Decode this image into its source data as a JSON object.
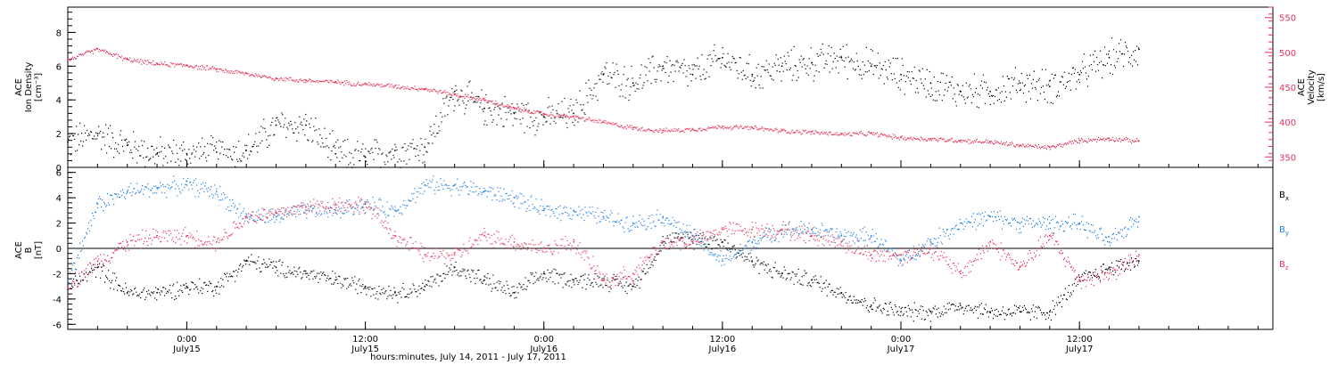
{
  "figure": {
    "xaxis_title": "hours:minutes, July 14, 2011 - July 17, 2011",
    "xticks": [
      {
        "time": "0:00",
        "day": "July15",
        "hour": 24
      },
      {
        "time": "12:00",
        "day": "July15",
        "hour": 36
      },
      {
        "time": "0:00",
        "day": "July16",
        "hour": 48
      },
      {
        "time": "12:00",
        "day": "July16",
        "hour": 60
      },
      {
        "time": "0:00",
        "day": "July17",
        "hour": 72
      },
      {
        "time": "12:00",
        "day": "July17",
        "hour": 84
      }
    ],
    "xrange_hours": [
      16,
      97
    ]
  },
  "colors": {
    "black": "#000000",
    "pink": "#e8325a",
    "blue": "#1e7fe0",
    "gray": "#555555"
  },
  "chart_data": [
    {
      "type": "scatter",
      "ylabel_lines": [
        "ACE",
        "Ion Density",
        "[cm⁻³]"
      ],
      "y2label_lines": [
        "ACE",
        "Velocity",
        "[km/s]"
      ],
      "ylim": [
        0,
        9.5
      ],
      "y2lim": [
        335,
        565
      ],
      "yticks": [
        0,
        2,
        4,
        6,
        8
      ],
      "y2ticks": [
        350,
        400,
        450,
        500,
        550
      ],
      "x_hours": [
        16,
        18,
        20,
        22,
        24,
        26,
        28,
        30,
        32,
        34,
        36,
        38,
        40,
        42,
        44,
        46,
        48,
        50,
        52,
        54,
        56,
        58,
        60,
        62,
        64,
        66,
        68,
        70,
        72,
        74,
        76,
        78,
        80,
        82,
        84,
        86,
        88
      ],
      "series": [
        {
          "role": "density",
          "color": "#000000",
          "values": [
            1.5,
            2.0,
            1.3,
            0.8,
            0.8,
            0.9,
            1.0,
            2.5,
            2.5,
            0.8,
            0.6,
            1.0,
            1.2,
            4.5,
            3.5,
            3.2,
            3.0,
            3.2,
            5.5,
            5.0,
            6.0,
            5.5,
            6.5,
            5.5,
            6.0,
            6.2,
            6.5,
            6.0,
            5.5,
            5.0,
            4.5,
            4.5,
            5.0,
            4.8,
            5.5,
            6.5,
            7.0
          ]
        },
        {
          "role": "velocity",
          "color": "#e8325a",
          "axis": "right",
          "values": [
            490,
            505,
            490,
            484,
            482,
            476,
            470,
            463,
            460,
            458,
            455,
            452,
            448,
            440,
            432,
            420,
            412,
            408,
            400,
            392,
            388,
            390,
            394,
            392,
            388,
            386,
            383,
            384,
            378,
            376,
            374,
            372,
            367,
            364,
            374,
            377,
            373
          ]
        }
      ]
    },
    {
      "type": "scatter",
      "ylabel_lines": [
        "ACE",
        "B",
        "[nT]"
      ],
      "ylim": [
        -6.4,
        6.4
      ],
      "yticks": [
        -6,
        -4,
        -2,
        0,
        2,
        4,
        6
      ],
      "x_hours": [
        16,
        18,
        20,
        22,
        24,
        26,
        28,
        30,
        32,
        34,
        36,
        38,
        40,
        42,
        44,
        46,
        48,
        50,
        52,
        54,
        56,
        58,
        60,
        62,
        64,
        66,
        68,
        70,
        72,
        74,
        76,
        78,
        80,
        82,
        84,
        86,
        88
      ],
      "series": [
        {
          "name": "Bx",
          "color": "#000000",
          "values": [
            -3.0,
            -1.5,
            -3.5,
            -3.5,
            -3.0,
            -3.0,
            -1.0,
            -1.5,
            -2.0,
            -2.5,
            -3.0,
            -3.5,
            -3.0,
            -1.5,
            -2.5,
            -3.5,
            -2.0,
            -2.5,
            -2.5,
            -3.0,
            0.5,
            1.0,
            0.5,
            -1.0,
            -2.0,
            -2.5,
            -3.5,
            -4.5,
            -5.0,
            -5.0,
            -4.5,
            -5.0,
            -5.0,
            -5.0,
            -2.5,
            -1.5,
            -1.0
          ]
        },
        {
          "name": "By",
          "color": "#1e7fe0",
          "values": [
            -2.5,
            3.5,
            4.5,
            4.8,
            5.0,
            4.5,
            2.5,
            2.5,
            3.0,
            3.0,
            3.5,
            3.0,
            5.0,
            5.0,
            4.5,
            4.0,
            3.0,
            3.0,
            2.5,
            2.0,
            2.5,
            1.0,
            -1.0,
            0.5,
            1.5,
            1.5,
            1.0,
            1.0,
            -1.0,
            0.5,
            2.0,
            2.5,
            2.0,
            2.0,
            2.0,
            0.5,
            2.5
          ]
        },
        {
          "name": "Bz",
          "color": "#e8325a",
          "values": [
            -3.0,
            -1.0,
            0.5,
            1.0,
            1.0,
            0.5,
            2.5,
            2.8,
            3.3,
            3.5,
            3.5,
            1.0,
            -0.5,
            -0.5,
            1.0,
            0.5,
            0.0,
            0.5,
            -2.5,
            -2.0,
            0.5,
            0.5,
            1.5,
            1.5,
            1.5,
            1.0,
            0.5,
            -0.5,
            -0.5,
            0.0,
            -2.0,
            0.5,
            -1.5,
            1.0,
            -2.5,
            -2.0,
            -0.5
          ]
        }
      ],
      "legend": [
        "Bx",
        "By",
        "Bz"
      ]
    }
  ]
}
